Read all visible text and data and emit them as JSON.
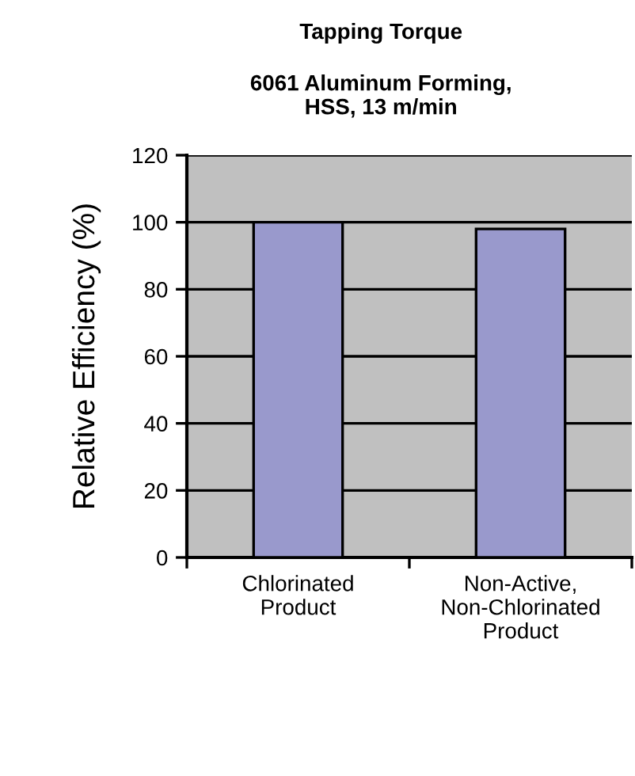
{
  "chart_data": {
    "type": "bar",
    "title": "Tapping Torque",
    "subtitle": "6061 Aluminum Forming,\nHSS, 13 m/min",
    "ylabel": "Relative Efficiency (%)",
    "categories": [
      "Chlorinated\nProduct",
      "Non-Active,\nNon-Chlorinated\nProduct"
    ],
    "values": [
      100,
      98
    ],
    "color": "#9999cc",
    "ylim": [
      0,
      120
    ],
    "yticks": [
      0,
      20,
      40,
      60,
      80,
      100,
      120
    ],
    "grid": "y"
  }
}
